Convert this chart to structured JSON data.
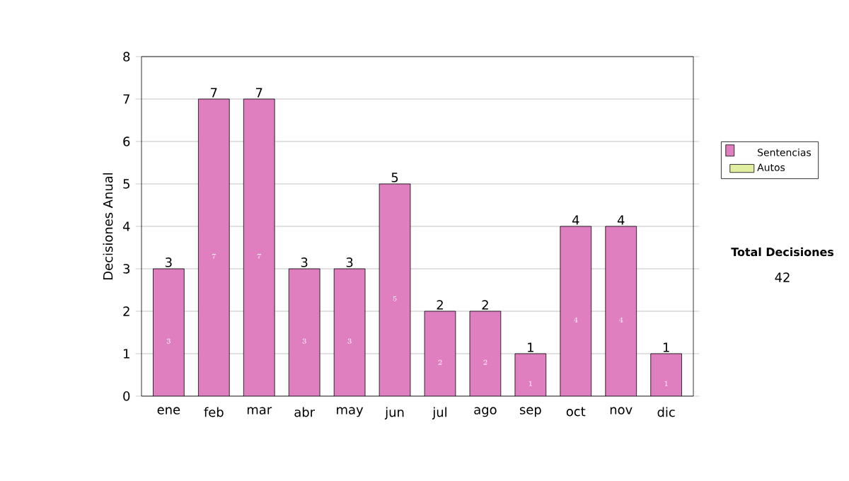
{
  "chart_data": {
    "type": "bar",
    "stacked": true,
    "ylabel": "Decisiones Anual",
    "categories": [
      "ene",
      "feb",
      "mar",
      "abr",
      "may",
      "jun",
      "jul",
      "ago",
      "sep",
      "oct",
      "nov",
      "dic"
    ],
    "series": [
      {
        "name": "Sentencias",
        "color": "#e07fc0",
        "values": [
          3,
          7,
          7,
          3,
          3,
          5,
          2,
          2,
          1,
          4,
          4,
          1
        ]
      },
      {
        "name": "Autos",
        "color": "#e0f0a0",
        "values": [
          null,
          null,
          null,
          null,
          null,
          null,
          null,
          null,
          null,
          null,
          null,
          null
        ]
      }
    ],
    "ylim": [
      0,
      8
    ],
    "yticks": [
      0,
      1,
      2,
      3,
      4,
      5,
      6,
      7,
      8
    ],
    "grid": "y",
    "legend": "right",
    "data_labels": true,
    "totals": [
      "3",
      "7",
      "7",
      "3",
      "3",
      "5",
      "2",
      "2",
      "1",
      "4",
      "4",
      "1"
    ],
    "annotations": [
      "Total Decisiones",
      "42"
    ]
  }
}
